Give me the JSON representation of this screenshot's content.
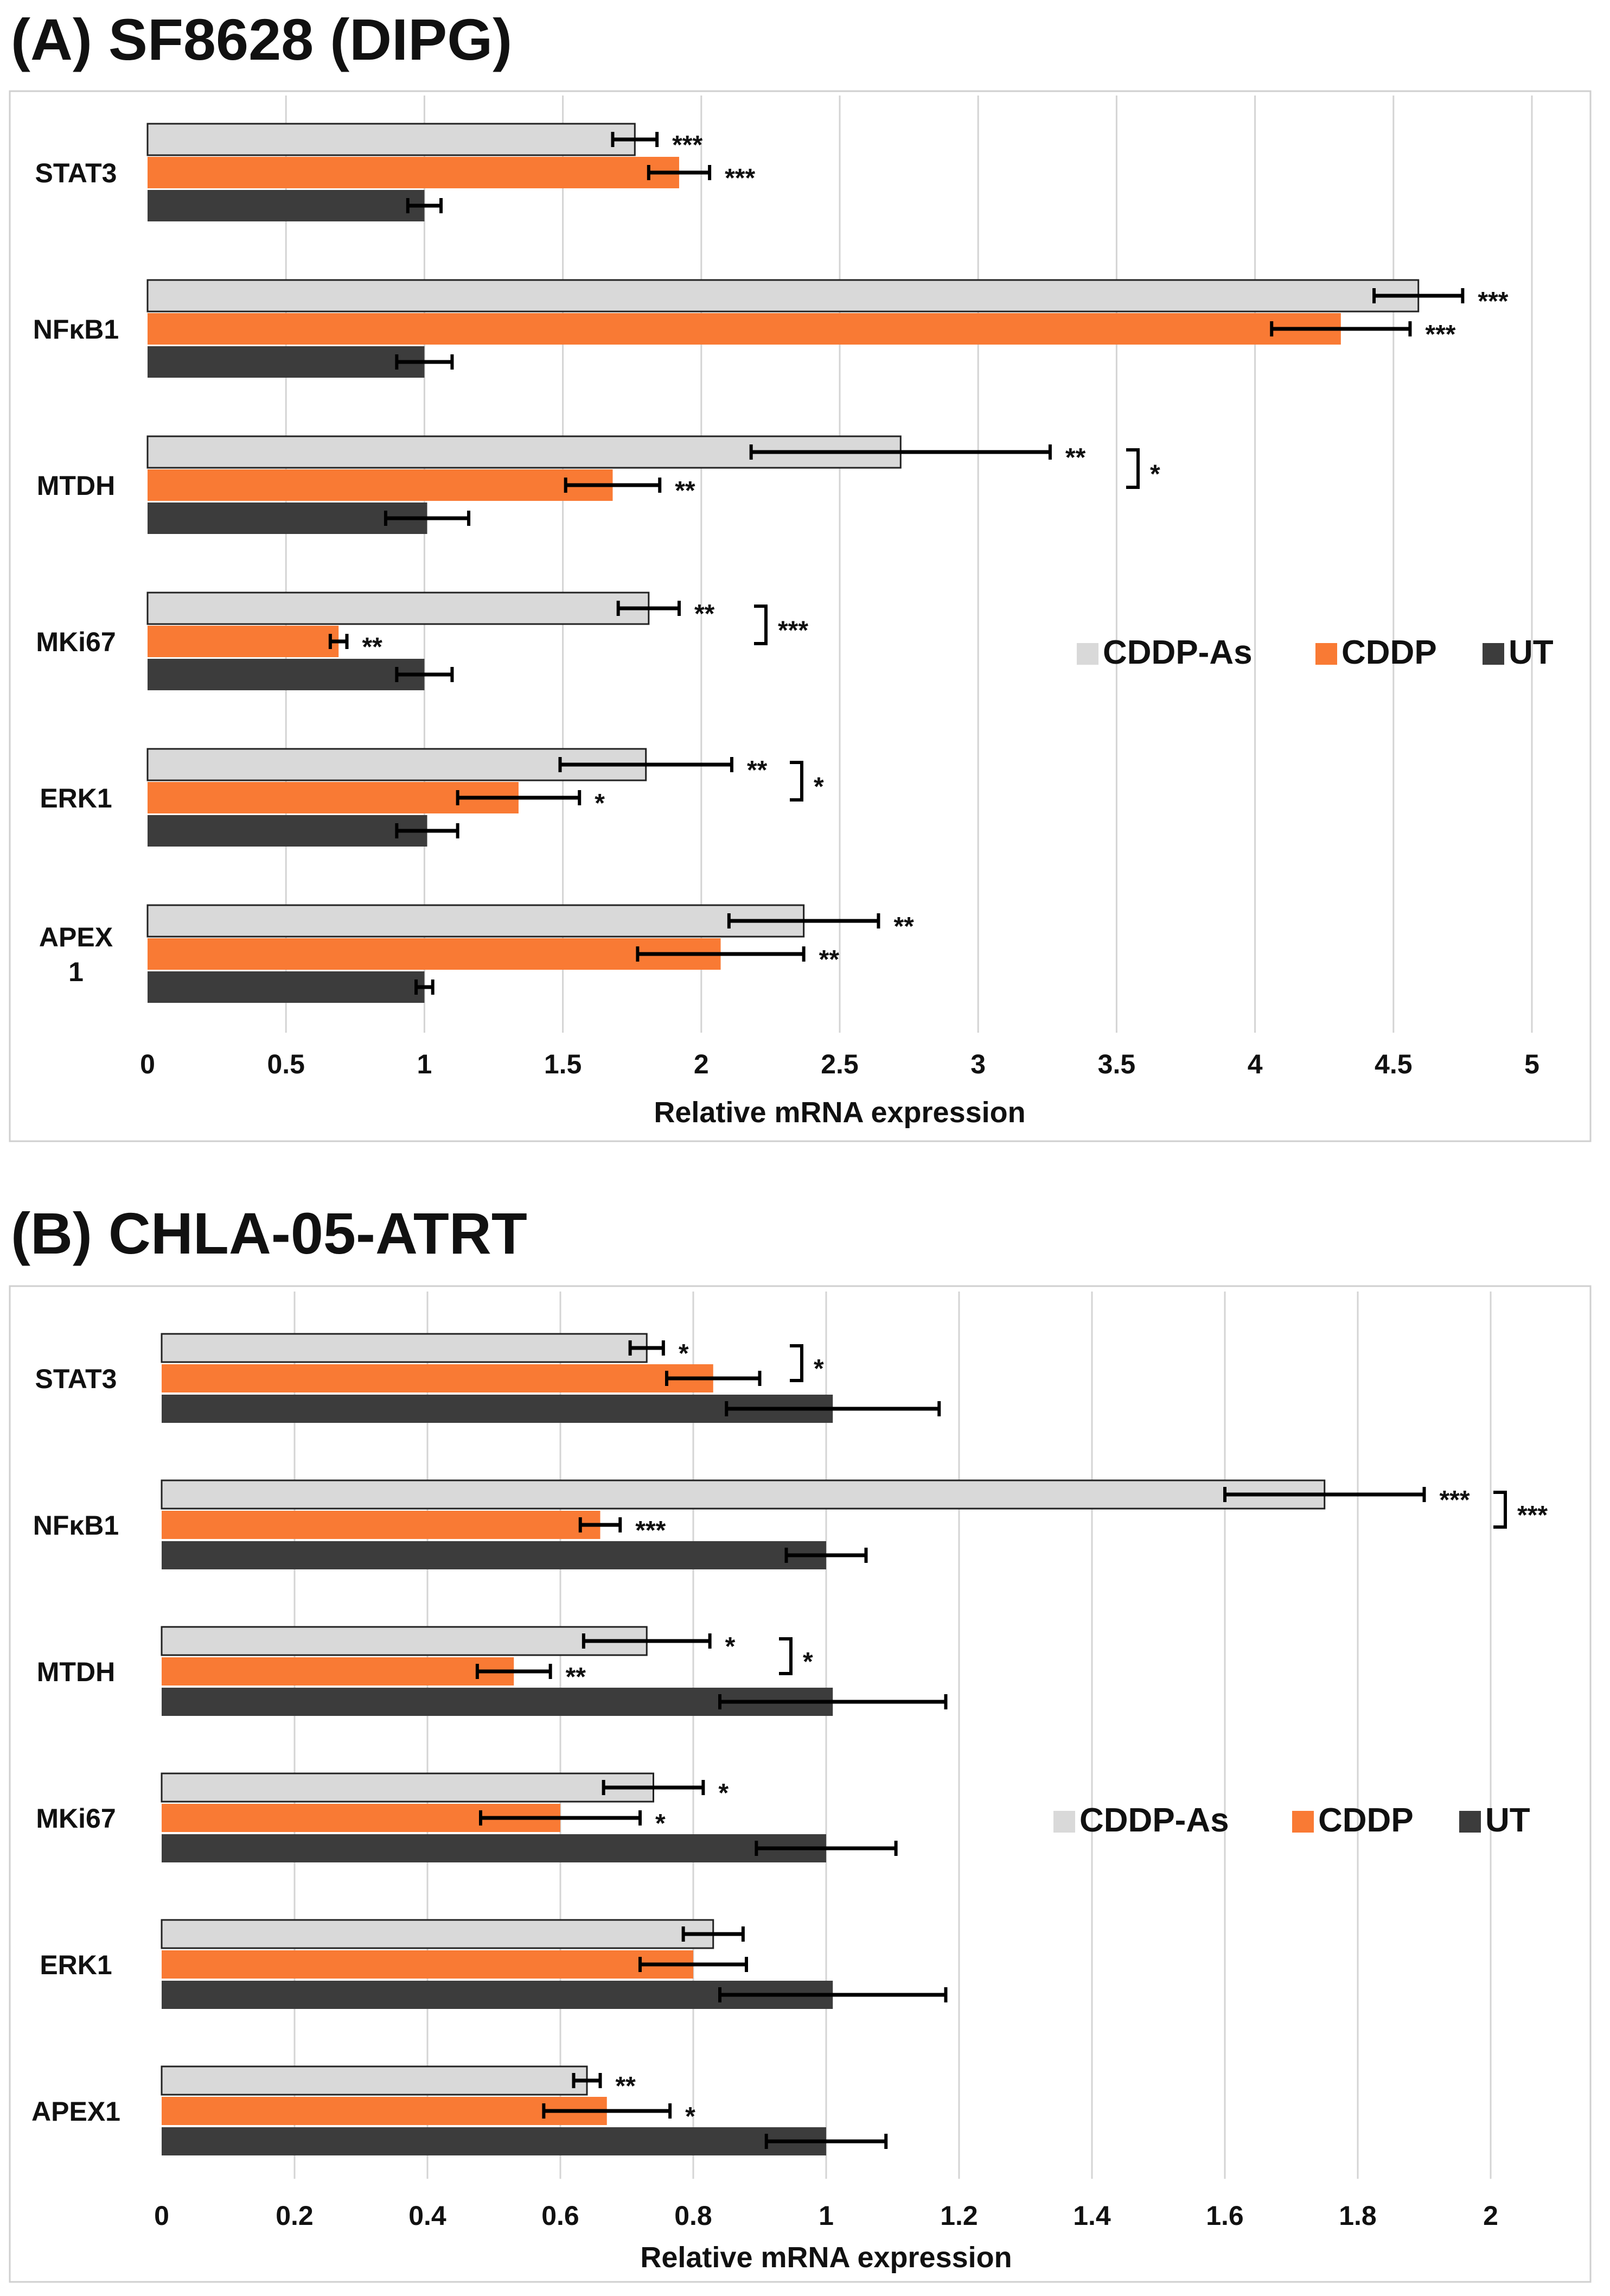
{
  "colors": {
    "ut": "#3c3c3c",
    "cddp": "#f97a34",
    "cddp_as": "#d9d9d9",
    "grid": "#d4d4d4",
    "frame": "#cfcfcf",
    "ink": "#000000"
  },
  "chart_data": [
    {
      "type": "bar",
      "orientation": "horizontal",
      "title": "(A) SF8628 (DIPG)",
      "xlabel": "Relative mRNA expression",
      "xlim": [
        0,
        5
      ],
      "xticks": [
        "0",
        "0.5",
        "1",
        "1.5",
        "2",
        "2.5",
        "3",
        "3.5",
        "4",
        "4.5",
        "5"
      ],
      "grid": "vertical",
      "legend_position": "middle-right",
      "categories": [
        {
          "label": [
            "STAT3"
          ]
        },
        {
          "label": [
            "NFκB1"
          ]
        },
        {
          "label": [
            "MTDH"
          ]
        },
        {
          "label": [
            "MKi67"
          ]
        },
        {
          "label": [
            "ERK1"
          ]
        },
        {
          "label": [
            "APEX",
            "1"
          ]
        }
      ],
      "series": [
        {
          "key": "cddp_as",
          "name": "CDDP-As",
          "values": [
            1.76,
            4.59,
            2.72,
            1.81,
            1.8,
            2.37
          ],
          "errors": [
            0.08,
            0.16,
            0.54,
            0.11,
            0.31,
            0.27
          ],
          "sig": [
            "***",
            "***",
            "**",
            "**",
            "**",
            "**"
          ]
        },
        {
          "key": "cddp",
          "name": "CDDP",
          "values": [
            1.92,
            4.31,
            1.68,
            0.69,
            1.34,
            2.07
          ],
          "errors": [
            0.11,
            0.25,
            0.17,
            0.03,
            0.22,
            0.3
          ],
          "sig": [
            "***",
            "***",
            "**",
            "**",
            "*",
            "**"
          ]
        },
        {
          "key": "ut",
          "name": "UT",
          "values": [
            1.0,
            1.0,
            1.01,
            1.0,
            1.01,
            1.0
          ],
          "errors": [
            0.06,
            0.1,
            0.15,
            0.1,
            0.11,
            0.03
          ],
          "sig": [
            "",
            "",
            "",
            "",
            "",
            ""
          ]
        }
      ],
      "brackets": [
        {
          "category": 2,
          "label": "*"
        },
        {
          "category": 3,
          "label": "***"
        },
        {
          "category": 4,
          "label": "*"
        }
      ],
      "legend": [
        "CDDP-As",
        "CDDP",
        "UT"
      ]
    },
    {
      "type": "bar",
      "orientation": "horizontal",
      "title": "(B) CHLA-05-ATRT",
      "xlabel": "Relative mRNA expression",
      "xlim": [
        0,
        2
      ],
      "xticks": [
        "0",
        "0.2",
        "0.4",
        "0.6",
        "0.8",
        "1",
        "1.2",
        "1.4",
        "1.6",
        "1.8",
        "2"
      ],
      "grid": "vertical",
      "legend_position": "middle-right",
      "categories": [
        {
          "label": [
            "STAT3"
          ]
        },
        {
          "label": [
            "NFκB1"
          ]
        },
        {
          "label": [
            "MTDH"
          ]
        },
        {
          "label": [
            "MKi67"
          ]
        },
        {
          "label": [
            "ERK1"
          ]
        },
        {
          "label": [
            "APEX1"
          ]
        }
      ],
      "series": [
        {
          "key": "cddp_as",
          "name": "CDDP-As",
          "values": [
            0.73,
            1.75,
            0.73,
            0.74,
            0.83,
            0.64
          ],
          "errors": [
            0.025,
            0.15,
            0.095,
            0.075,
            0.045,
            0.02
          ],
          "sig": [
            "*",
            "***",
            "*",
            "*",
            "",
            "**"
          ]
        },
        {
          "key": "cddp",
          "name": "CDDP",
          "values": [
            0.83,
            0.66,
            0.53,
            0.6,
            0.8,
            0.67
          ],
          "errors": [
            0.07,
            0.03,
            0.055,
            0.12,
            0.08,
            0.095
          ],
          "sig": [
            "",
            "***",
            "**",
            "*",
            "",
            "*"
          ]
        },
        {
          "key": "ut",
          "name": "UT",
          "values": [
            1.01,
            1.0,
            1.01,
            1.0,
            1.01,
            1.0
          ],
          "errors": [
            0.16,
            0.06,
            0.17,
            0.105,
            0.17,
            0.09
          ],
          "sig": [
            "",
            "",
            "",
            "",
            "",
            ""
          ]
        }
      ],
      "brackets": [
        {
          "category": 0,
          "label": "*"
        },
        {
          "category": 1,
          "label": "***"
        },
        {
          "category": 2,
          "label": "*"
        }
      ],
      "legend": [
        "CDDP-As",
        "CDDP",
        "UT"
      ]
    }
  ]
}
